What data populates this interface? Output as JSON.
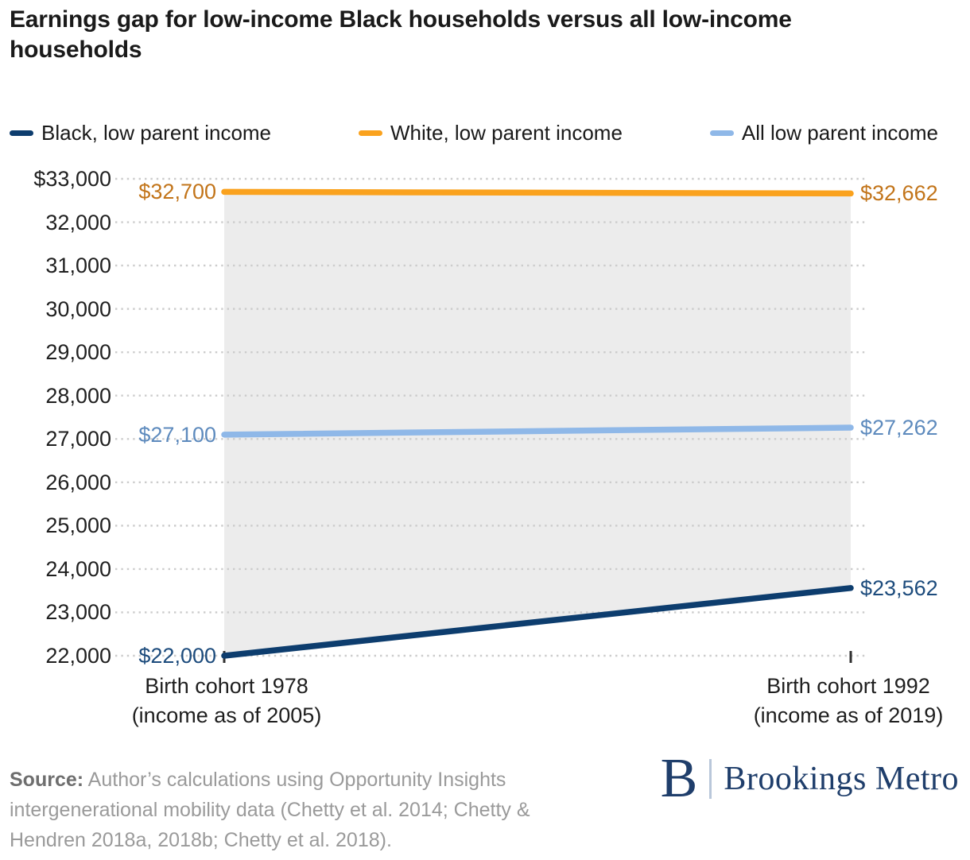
{
  "header": {
    "title": "Earnings gap for low-income Black households versus all low-income households"
  },
  "chart_data": {
    "type": "line",
    "title": "Earnings gap for low-income Black households versus all low-income households",
    "x_categories": [
      [
        "Birth cohort 1978",
        "(income as of 2005)"
      ],
      [
        "Birth cohort 1992",
        "(income as of 2019)"
      ]
    ],
    "series": [
      {
        "name": "Black, low parent income",
        "values": [
          22000,
          23562
        ],
        "point_labels": [
          "$22,000",
          "$23,562"
        ],
        "color": "#0d3d6e",
        "label_color": "#1c4b7c"
      },
      {
        "name": "White, low parent income",
        "values": [
          32700,
          32662
        ],
        "point_labels": [
          "$32,700",
          "$32,662"
        ],
        "color": "#faa21e",
        "label_color": "#c27419"
      },
      {
        "name": "All low parent income",
        "values": [
          27100,
          27262
        ],
        "point_labels": [
          "$27,100",
          "$27,262"
        ],
        "color": "#8fb8e8",
        "label_color": "#5d8abd"
      }
    ],
    "ylim": [
      22000,
      33000
    ],
    "y_tick_values": [
      33000,
      32000,
      31000,
      30000,
      29000,
      28000,
      27000,
      26000,
      25000,
      24000,
      23000,
      22000
    ],
    "y_tick_labels": [
      "$33,000",
      "32,000",
      "31,000",
      "30,000",
      "29,000",
      "28,000",
      "27,000",
      "26,000",
      "25,000",
      "24,000",
      "23,000",
      "22,000"
    ],
    "grid": "horizontal-dotted",
    "legend_position": "top",
    "shaded_band_between": [
      "White, low parent income",
      "Black, low parent income"
    ],
    "band_color": "#ececec",
    "gridline_color": "#cccccc",
    "tick_mark_color": "#2f2f2f"
  },
  "footer": {
    "source_label": "Source:",
    "source_lines": [
      "Author’s calculations using Opportunity Insights",
      "intergenerational mobility data (Chetty et al. 2014; Chetty &",
      "Hendren 2018a, 2018b; Chetty et al. 2018)."
    ],
    "logo_mark": "B",
    "logo_text": "Brookings Metro"
  }
}
